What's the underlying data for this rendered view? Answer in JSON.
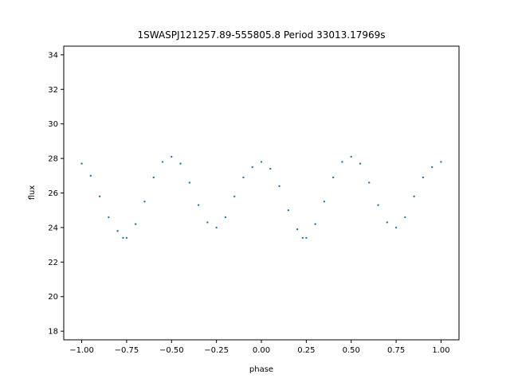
{
  "chart_data": {
    "type": "scatter",
    "title": "1SWASPJ121257.89-555805.8 Period 33013.17969s",
    "xlabel": "phase",
    "ylabel": "flux",
    "xlim": [
      -1.1,
      1.1
    ],
    "ylim": [
      17.5,
      34.5
    ],
    "xticks": [
      -1.0,
      -0.75,
      -0.5,
      -0.25,
      0.0,
      0.25,
      0.5,
      0.75,
      1.0
    ],
    "xtick_labels": [
      "−1.00",
      "−0.75",
      "−0.50",
      "−0.25",
      "0.00",
      "0.25",
      "0.50",
      "0.75",
      "1.00"
    ],
    "yticks": [
      18,
      20,
      22,
      24,
      26,
      28,
      30,
      32,
      34
    ],
    "ytick_labels": [
      "18",
      "20",
      "22",
      "24",
      "26",
      "28",
      "30",
      "32",
      "34"
    ],
    "grid": false,
    "point_color": "#1f77b4",
    "series": [
      {
        "points": [
          [
            -1.0,
            27.7
          ],
          [
            -0.95,
            27.0
          ],
          [
            -0.9,
            25.8
          ],
          [
            -0.85,
            24.6
          ],
          [
            -0.8,
            23.8
          ],
          [
            -0.77,
            23.4
          ],
          [
            -0.75,
            23.4
          ],
          [
            -0.7,
            24.2
          ],
          [
            -0.65,
            25.5
          ],
          [
            -0.6,
            26.9
          ],
          [
            -0.55,
            27.8
          ],
          [
            -0.5,
            28.1
          ],
          [
            -0.45,
            27.7
          ],
          [
            -0.4,
            26.6
          ],
          [
            -0.35,
            25.3
          ],
          [
            -0.3,
            24.3
          ],
          [
            -0.25,
            24.0
          ],
          [
            -0.2,
            24.6
          ],
          [
            -0.15,
            25.8
          ],
          [
            -0.1,
            26.9
          ],
          [
            -0.05,
            27.5
          ],
          [
            0.0,
            27.8
          ],
          [
            0.05,
            27.4
          ],
          [
            0.1,
            26.4
          ],
          [
            0.15,
            25.0
          ],
          [
            0.2,
            23.9
          ],
          [
            0.23,
            23.4
          ],
          [
            0.25,
            23.4
          ],
          [
            0.3,
            24.2
          ],
          [
            0.35,
            25.5
          ],
          [
            0.4,
            26.9
          ],
          [
            0.45,
            27.8
          ],
          [
            0.5,
            28.1
          ],
          [
            0.55,
            27.7
          ],
          [
            0.6,
            26.6
          ],
          [
            0.65,
            25.3
          ],
          [
            0.7,
            24.3
          ],
          [
            0.75,
            24.0
          ],
          [
            0.8,
            24.6
          ],
          [
            0.85,
            25.8
          ],
          [
            0.9,
            26.9
          ],
          [
            0.95,
            27.5
          ],
          [
            1.0,
            27.8
          ]
        ]
      }
    ]
  }
}
